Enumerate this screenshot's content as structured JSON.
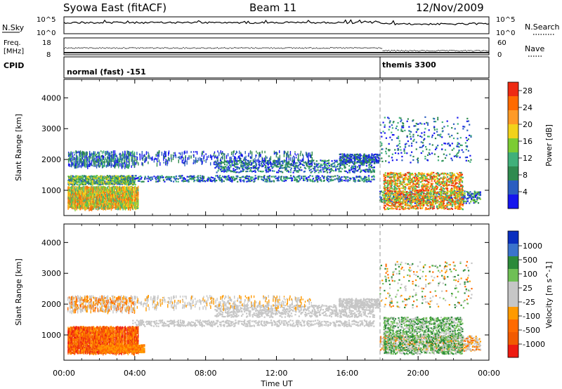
{
  "header": {
    "station": "Syowa East (fitACF)",
    "beam": "Beam 11",
    "date": "12/Nov/2009"
  },
  "status_panels": {
    "nsky_label": "N.Sky",
    "nsearch_label": "N.Search",
    "noise_ticks_left": [
      "10^5",
      "10^0"
    ],
    "noise_ticks_right": [
      "10^5",
      "10^0"
    ],
    "freq_label_1": "Freq.",
    "freq_label_2": "[MHz]",
    "freq_ticks": [
      "18",
      "8"
    ],
    "nave_label": "Nave",
    "nave_ticks": [
      "60",
      "0"
    ],
    "cpid_label": "CPID",
    "cpid_modes": [
      {
        "name": "normal (fast) -151",
        "start_hour": 0
      },
      {
        "name": "themis 3300",
        "start_hour": 18
      }
    ]
  },
  "colors": {
    "power": [
      "#1515ee",
      "#2a5dc0",
      "#2f8a4f",
      "#40b07a",
      "#7ccc33",
      "#f2d21b",
      "#ff9a26",
      "#ff6a00",
      "#ee2a12"
    ],
    "velocity": [
      "#0a2fbf",
      "#3a73cc",
      "#2c8a3a",
      "#6fbf55",
      "#c6c6c6",
      "#c6c6c6",
      "#ff9a00",
      "#ff6a00",
      "#f25a00",
      "#ee1a10"
    ]
  },
  "chart_data": [
    {
      "type": "heatmap",
      "panel": "power",
      "xlabel": "",
      "ylabel": "Slant Range [km]",
      "xlim": [
        0,
        24
      ],
      "ylim": [
        180,
        4600
      ],
      "yticks": [
        "1000",
        "2000",
        "3000",
        "4000"
      ],
      "colorbar_label": "Power [dB]",
      "colorbar_ticks": [
        "4",
        "8",
        "12",
        "16",
        "20",
        "24",
        "28"
      ],
      "colorbar_range": [
        0,
        30
      ],
      "scatter_regions": [
        {
          "t": [
            0.2,
            4.2
          ],
          "r": [
            450,
            1150
          ],
          "dens": 0.95,
          "level": [
            3,
            7
          ],
          "vert": true
        },
        {
          "t": [
            0.2,
            4.0
          ],
          "r": [
            1200,
            1500
          ],
          "dens": 0.8,
          "level": [
            1,
            5
          ]
        },
        {
          "t": [
            0.2,
            4.0
          ],
          "r": [
            1800,
            2300
          ],
          "dens": 0.45,
          "level": [
            0,
            3
          ],
          "vert": true
        },
        {
          "t": [
            3.8,
            17.5
          ],
          "r": [
            1300,
            1500
          ],
          "dens": 0.35,
          "level": [
            0,
            3
          ]
        },
        {
          "t": [
            8.5,
            17.5
          ],
          "r": [
            1600,
            2000
          ],
          "dens": 0.3,
          "level": [
            0,
            3
          ]
        },
        {
          "t": [
            4.0,
            14.0
          ],
          "r": [
            1900,
            2300
          ],
          "dens": 0.15,
          "level": [
            0,
            2
          ],
          "vert": true
        },
        {
          "t": [
            15.5,
            17.8
          ],
          "r": [
            1900,
            2200
          ],
          "dens": 0.6,
          "level": [
            0,
            2
          ]
        },
        {
          "t": [
            17.8,
            23.5
          ],
          "r": [
            600,
            1000
          ],
          "dens": 0.35,
          "level": [
            0,
            4
          ]
        },
        {
          "t": [
            18.0,
            22.5
          ],
          "r": [
            400,
            1600
          ],
          "dens": 0.4,
          "level": [
            3,
            8
          ]
        },
        {
          "t": [
            17.8,
            23.0
          ],
          "r": [
            1900,
            3400
          ],
          "dens": 0.06,
          "level": [
            0,
            3
          ]
        }
      ]
    },
    {
      "type": "heatmap",
      "panel": "velocity",
      "xlabel": "Time UT",
      "ylabel": "Slant Range [km]",
      "xlim": [
        0,
        24
      ],
      "ylim": [
        180,
        4600
      ],
      "xticks": [
        "00:00",
        "04:00",
        "08:00",
        "12:00",
        "16:00",
        "20:00",
        "00:00"
      ],
      "yticks": [
        "1000",
        "2000",
        "3000",
        "4000"
      ],
      "colorbar_label": "Velocity [m s^-1]",
      "colorbar_ticks": [
        "1000",
        "500",
        "100",
        "25",
        "-25",
        "-100",
        "-500",
        "-1000"
      ],
      "scatter_regions": [
        {
          "t": [
            0.2,
            4.2
          ],
          "r": [
            450,
            1300
          ],
          "dens": 0.95,
          "level": [
            6,
            9
          ],
          "vert": true
        },
        {
          "t": [
            2.0,
            4.5
          ],
          "r": [
            450,
            700
          ],
          "dens": 0.8,
          "level": [
            6,
            7
          ]
        },
        {
          "t": [
            0.2,
            4.0
          ],
          "r": [
            1800,
            2300
          ],
          "dens": 0.4,
          "level": [
            4,
            7
          ],
          "vert": true
        },
        {
          "t": [
            3.8,
            17.5
          ],
          "r": [
            1300,
            1500
          ],
          "dens": 0.35,
          "level": [
            4,
            5
          ]
        },
        {
          "t": [
            8.5,
            17.5
          ],
          "r": [
            1600,
            2000
          ],
          "dens": 0.3,
          "level": [
            4,
            5
          ]
        },
        {
          "t": [
            4.0,
            14.0
          ],
          "r": [
            1900,
            2300
          ],
          "dens": 0.15,
          "level": [
            4,
            6
          ],
          "vert": true
        },
        {
          "t": [
            15.5,
            17.8
          ],
          "r": [
            1900,
            2200
          ],
          "dens": 0.6,
          "level": [
            4,
            5
          ]
        },
        {
          "t": [
            17.8,
            23.5
          ],
          "r": [
            500,
            1000
          ],
          "dens": 0.35,
          "level": [
            4,
            7
          ]
        },
        {
          "t": [
            18.0,
            22.5
          ],
          "r": [
            400,
            1600
          ],
          "dens": 0.4,
          "level": [
            2,
            4
          ]
        },
        {
          "t": [
            17.8,
            23.0
          ],
          "r": [
            1900,
            3400
          ],
          "dens": 0.06,
          "level": [
            2,
            7
          ]
        }
      ]
    }
  ]
}
